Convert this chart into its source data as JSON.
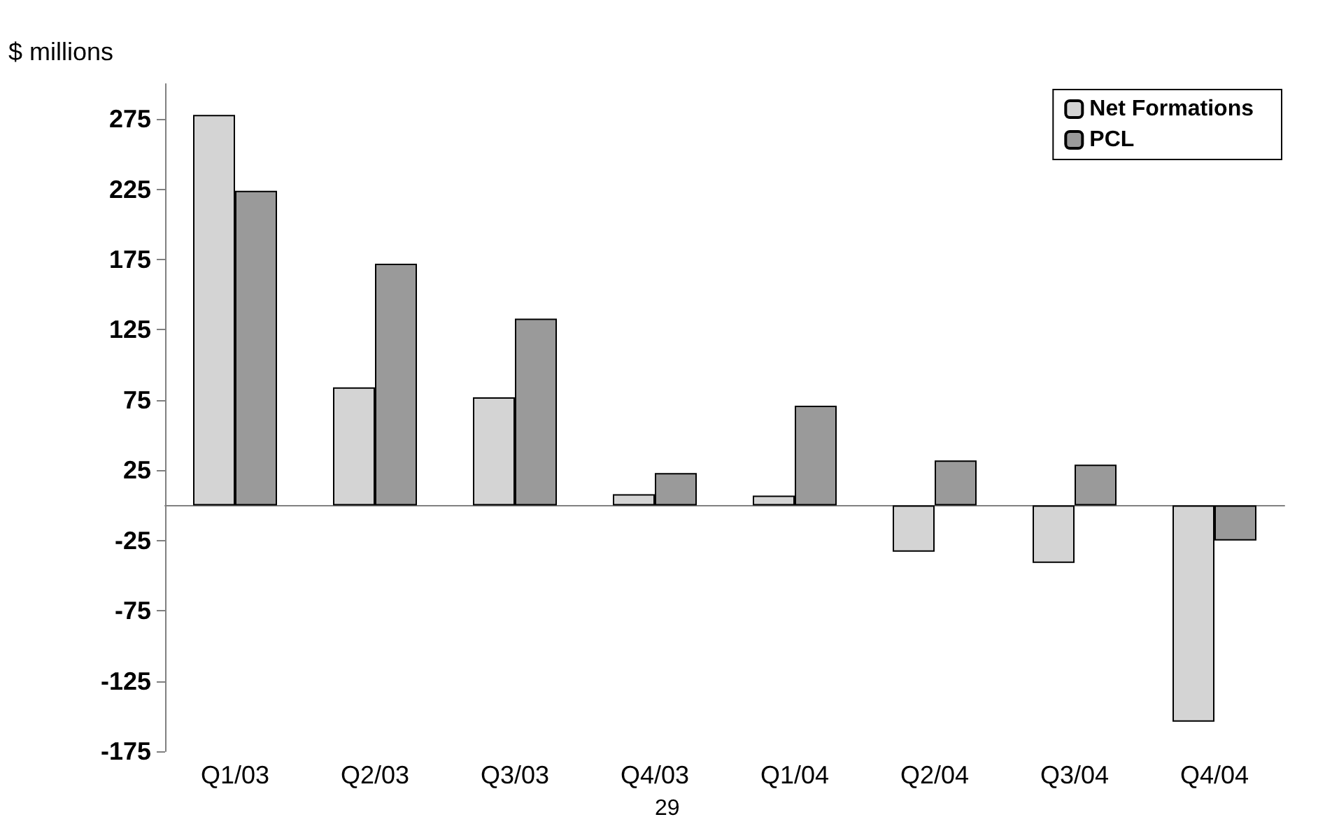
{
  "chart_data": {
    "type": "bar",
    "ylabel": "$ millions",
    "categories": [
      "Q1/03",
      "Q2/03",
      "Q3/03",
      "Q4/03",
      "Q1/04",
      "Q2/04",
      "Q3/04",
      "Q4/04"
    ],
    "series": [
      {
        "name": "Net Formations",
        "color": "#d4d4d4",
        "values": [
          278,
          84,
          77,
          8,
          7,
          -33,
          -41,
          -154
        ]
      },
      {
        "name": "PCL",
        "color": "#9a9a9a",
        "values": [
          224,
          172,
          133,
          23,
          71,
          32,
          29,
          -25
        ]
      }
    ],
    "ylim": [
      -175,
      300
    ],
    "yticks": [
      -175,
      -125,
      -75,
      -25,
      25,
      75,
      125,
      175,
      225,
      275
    ],
    "grid": false,
    "legend": "top right",
    "annotations": [
      "29"
    ]
  }
}
